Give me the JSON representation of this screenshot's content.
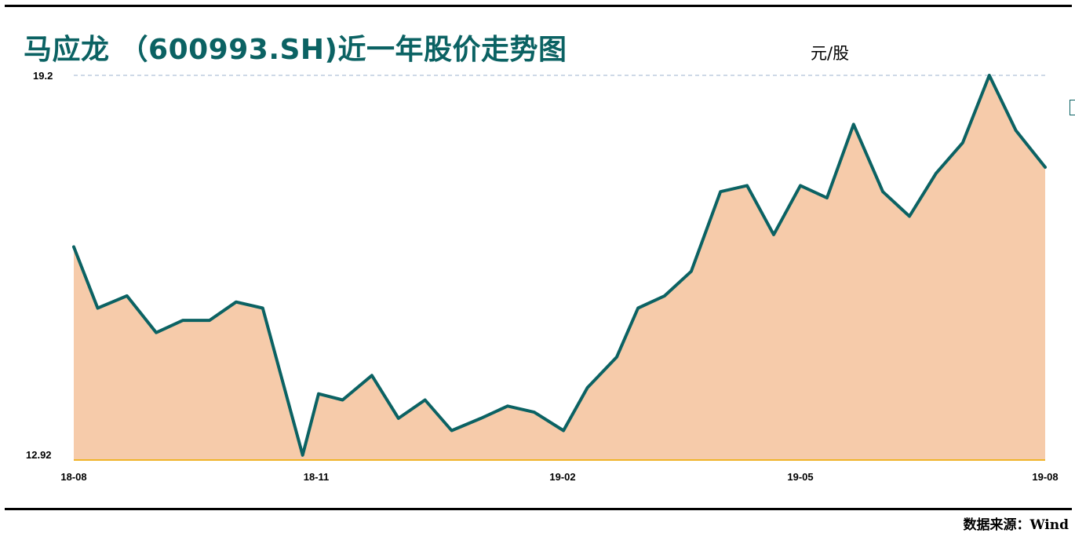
{
  "title": "马应龙 （600993.SH)近一年股价走势图",
  "unit": "元/股",
  "source": "数据来源：Wind",
  "colors": {
    "line": "#0b6263",
    "fill": "#f6cbaa",
    "baseline": "#f0b429",
    "grid": "#9db3cf",
    "title": "#0b6263"
  },
  "chart_data": {
    "type": "area",
    "title": "马应龙 （600993.SH)近一年股价走势图",
    "ylabel": "元/股",
    "xlabel": "",
    "ylim": [
      12.92,
      19.2
    ],
    "yticks": [
      "19.2",
      "12.92"
    ],
    "xlim": [
      "2018-08",
      "2019-08"
    ],
    "xticks": [
      "18-08",
      "18-11",
      "19-02",
      "19-05",
      "19-08"
    ],
    "grid": "dashed line at 19.2",
    "legend": "none",
    "series": [
      {
        "x": [
          "2018-08",
          "2018-08-10",
          "2018-08-21",
          "2018-09",
          "2018-09-11",
          "2018-09-21",
          "2018-10",
          "2018-10-11",
          "2018-10-21",
          "2018-10-26",
          "2018-11",
          "2018-11-10",
          "2018-11-21",
          "2018-12",
          "2018-12-11",
          "2018-12-21",
          "2019-01",
          "2019-01-11",
          "2019-01-21",
          "2019-02",
          "2019-02-10",
          "2019-02-21",
          "2019-03",
          "2019-03-11",
          "2019-03-21",
          "2019-04",
          "2019-04-11",
          "2019-04-21",
          "2019-05",
          "2019-05-11",
          "2019-05-21",
          "2019-06",
          "2019-06-11",
          "2019-06-21",
          "2019-07",
          "2019-07-11",
          "2019-07-21",
          "2019-08"
        ],
        "values": [
          16.4,
          15.4,
          15.6,
          15.0,
          15.2,
          15.2,
          15.5,
          15.4,
          13.8,
          13.0,
          14.0,
          13.9,
          14.3,
          13.6,
          13.9,
          13.4,
          13.6,
          13.8,
          13.7,
          13.4,
          14.1,
          14.6,
          15.4,
          15.6,
          16.0,
          17.3,
          17.4,
          16.6,
          17.4,
          17.2,
          18.4,
          17.3,
          16.9,
          17.6,
          18.1,
          19.2,
          18.3,
          17.7
        ]
      }
    ]
  }
}
